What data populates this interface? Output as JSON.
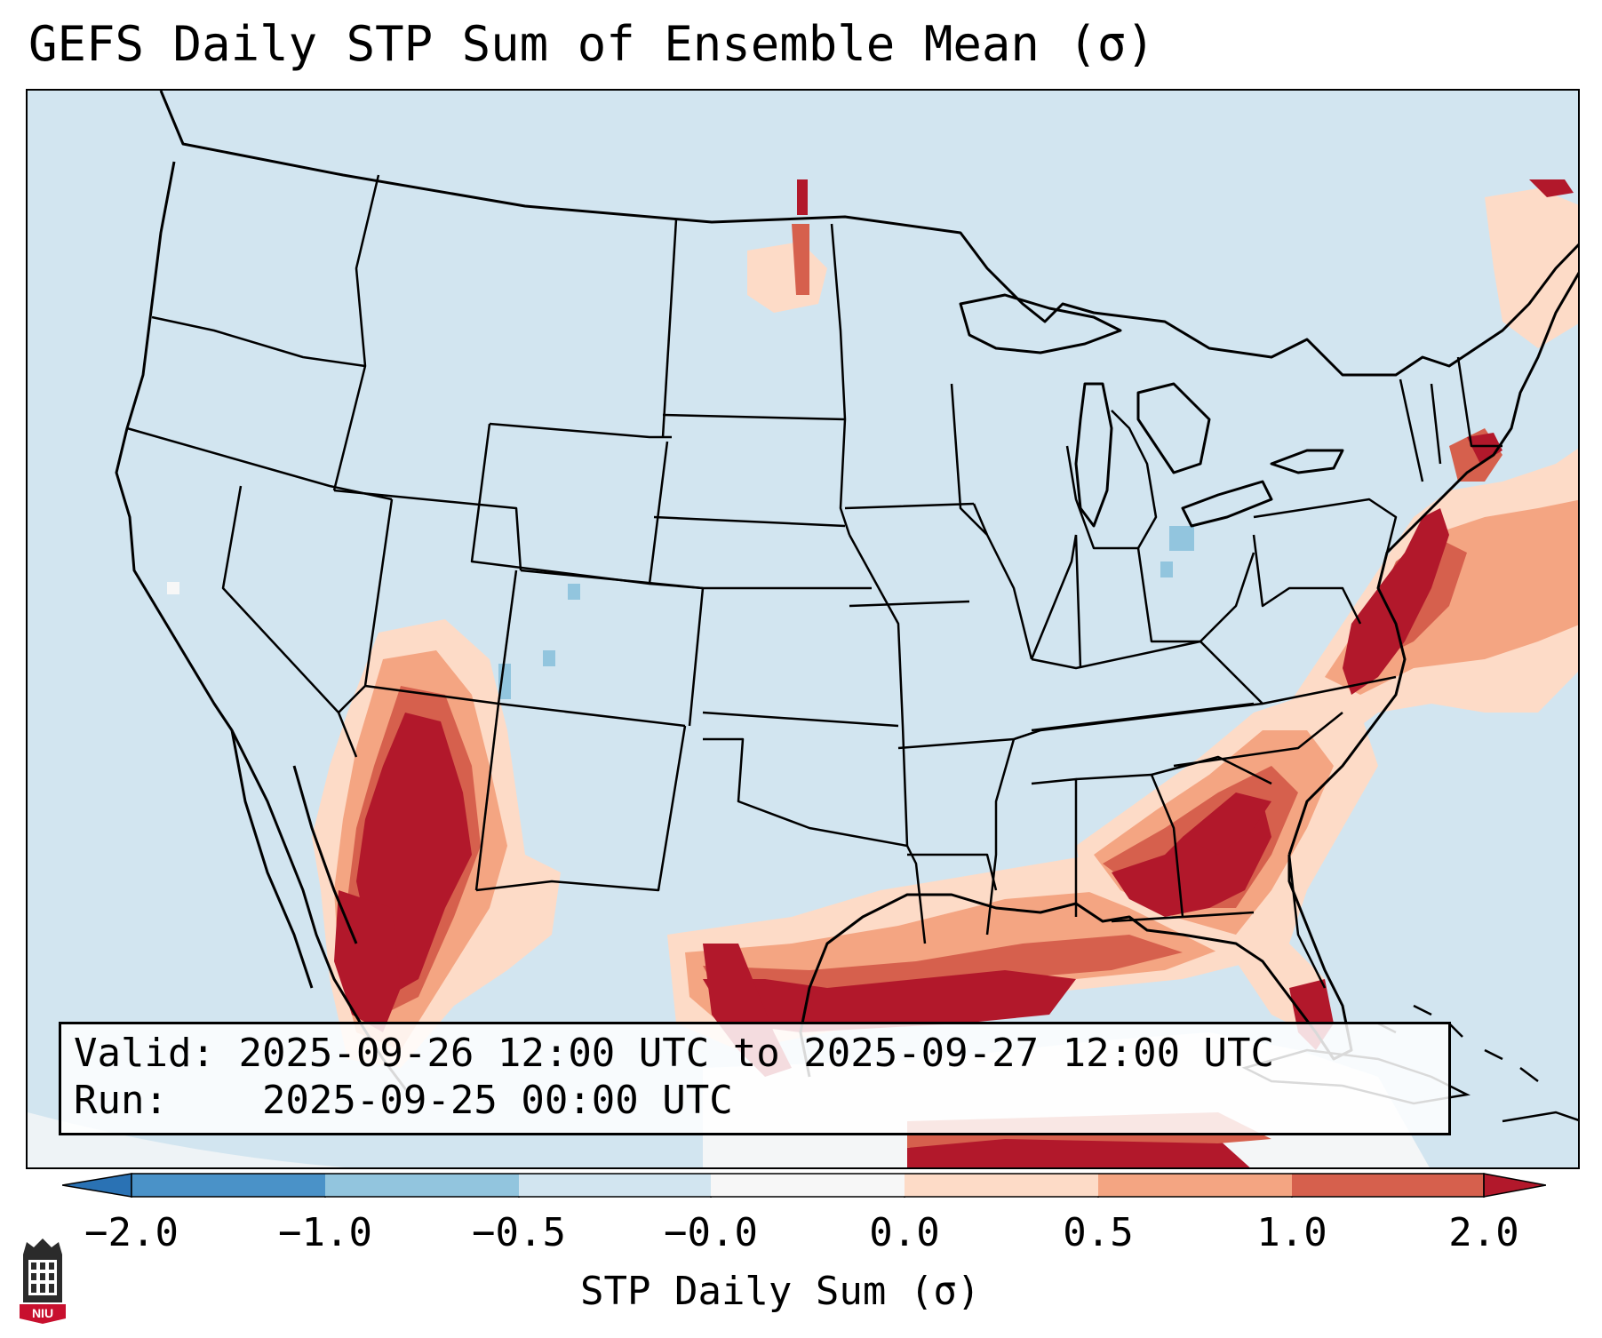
{
  "title": "GEFS Daily STP Sum of Ensemble Mean (σ)",
  "info": {
    "valid_label": "Valid:",
    "valid_value": "2025-09-26 12:00 UTC to 2025-09-27 12:00 UTC",
    "run_label": "Run:",
    "run_value": "2025-09-25 00:00 UTC"
  },
  "colorbar": {
    "label": "STP Daily Sum (σ)",
    "ticks": [
      "−2.0",
      "−1.0",
      "−0.5",
      "−0.0",
      "0.0",
      "0.5",
      "1.0",
      "2.0"
    ],
    "bins": [
      {
        "range": "< -2.0",
        "color": "#2a72b4"
      },
      {
        "range": "-2.0 to -1.0",
        "color": "#4a92c8"
      },
      {
        "range": "-1.0 to -0.5",
        "color": "#92c5de"
      },
      {
        "range": "-0.5 to -0.0",
        "color": "#d2e5f0"
      },
      {
        "range": "-0.0 to 0.0",
        "color": "#f7f7f7"
      },
      {
        "range": "0.0 to 0.5",
        "color": "#fddbc7"
      },
      {
        "range": "0.5 to 1.0",
        "color": "#f4a582"
      },
      {
        "range": "1.0 to 2.0",
        "color": "#d6604d"
      },
      {
        "range": "> 2.0",
        "color": "#b2182b"
      }
    ]
  },
  "map": {
    "region": "CONUS, northern Mexico, Gulf of Mexico, western Atlantic",
    "highlights": [
      {
        "area": "Southern Arizona / Northwestern Mexico",
        "level": "> 2.0"
      },
      {
        "area": "Georgia / North Florida / Gulf Coast",
        "level": "> 2.0"
      },
      {
        "area": "South Texas / Western Gulf",
        "level": "> 2.0"
      },
      {
        "area": "Mid-Atlantic coast (Delaware / Maryland / New Jersey)",
        "level": "> 2.0"
      },
      {
        "area": "Southern New England",
        "level": "1.0 to 2.0"
      },
      {
        "area": "Western Atlantic offshore",
        "level": "0.0 to 1.0"
      },
      {
        "area": "Western Colorado / Lake Erie",
        "level": "-1.0 to -0.5"
      }
    ]
  },
  "logo": {
    "text": "NIU",
    "name": "Northern Illinois University"
  }
}
